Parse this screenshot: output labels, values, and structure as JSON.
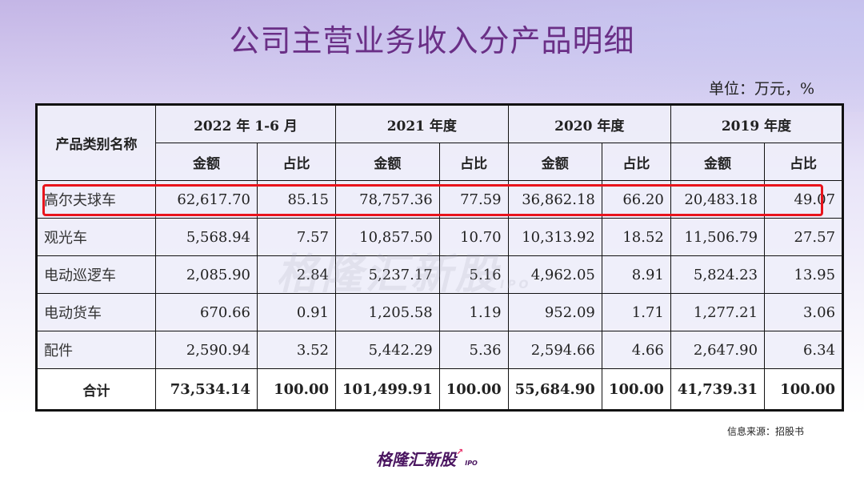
{
  "title": "公司主营业务收入分产品明细",
  "unit": "单位：万元，%",
  "table": {
    "corner": "产品类别名称",
    "periods": [
      "2022 年 1-6 月",
      "2021 年度",
      "2020 年度",
      "2019 年度"
    ],
    "sub": [
      "金额",
      "占比"
    ],
    "rows": [
      {
        "name": "高尔夫球车",
        "v": [
          "62,617.70",
          "85.15",
          "78,757.36",
          "77.59",
          "36,862.18",
          "66.20",
          "20,483.18",
          "49.07"
        ]
      },
      {
        "name": "观光车",
        "v": [
          "5,568.94",
          "7.57",
          "10,857.50",
          "10.70",
          "10,313.92",
          "18.52",
          "11,506.79",
          "27.57"
        ]
      },
      {
        "name": "电动巡逻车",
        "v": [
          "2,085.90",
          "2.84",
          "5,237.17",
          "5.16",
          "4,962.05",
          "8.91",
          "5,824.23",
          "13.95"
        ]
      },
      {
        "name": "电动货车",
        "v": [
          "670.66",
          "0.91",
          "1,205.58",
          "1.19",
          "952.09",
          "1.71",
          "1,277.21",
          "3.06"
        ]
      },
      {
        "name": "配件",
        "v": [
          "2,590.94",
          "3.52",
          "5,442.29",
          "5.36",
          "2,594.66",
          "4.66",
          "2,647.90",
          "6.34"
        ]
      }
    ],
    "total": {
      "name": "合计",
      "v": [
        "73,534.14",
        "100.00",
        "101,499.91",
        "100.00",
        "55,684.90",
        "100.00",
        "41,739.31",
        "100.00"
      ]
    }
  },
  "watermark": "格隆汇新股",
  "watermark_sub": "IPO",
  "source": "信息来源：招股书",
  "logo": {
    "text": "格隆汇新股",
    "sub": "IPO"
  },
  "colors": {
    "title": "#6a2f86",
    "highlight": "#e8141c"
  }
}
